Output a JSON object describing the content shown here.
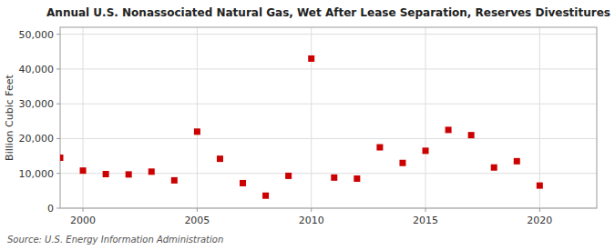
{
  "chart_data": {
    "type": "scatter",
    "title": "Annual U.S. Nonassociated Natural Gas, Wet After Lease Separation, Reserves Divestitures",
    "ylabel": "Billion Cubic Feet",
    "annotations": [
      "Source: U.S. Energy Information Administration"
    ],
    "x": [
      1999,
      2000,
      2001,
      2002,
      2003,
      2004,
      2005,
      2006,
      2007,
      2008,
      2009,
      2010,
      2011,
      2012,
      2013,
      2014,
      2015,
      2016,
      2017,
      2018,
      2019,
      2020,
      2021
    ],
    "values": [
      14500,
      10800,
      9800,
      9700,
      10500,
      8000,
      22000,
      14200,
      7200,
      3600,
      9300,
      43000,
      8800,
      8500,
      17500,
      13000,
      16500,
      22500,
      21000,
      11700,
      13500,
      6500,
      null
    ],
    "color": "#cc0000",
    "marker": "square",
    "xlim": [
      1999.0,
      2022.5
    ],
    "ylim": [
      0,
      52000
    ],
    "xticks": [
      2000,
      2005,
      2010,
      2015,
      2020
    ],
    "yticks": [
      0,
      {
        "value": 10000,
        "label": "10,000"
      },
      {
        "value": 20000,
        "label": "20,000"
      },
      {
        "value": 30000,
        "label": "30,000"
      },
      {
        "value": 40000,
        "label": "40,000"
      },
      {
        "value": 50000,
        "label": "50,000"
      }
    ],
    "grid": true
  }
}
